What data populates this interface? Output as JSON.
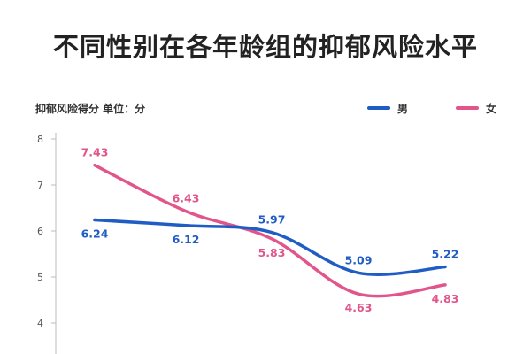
{
  "chart_data": {
    "type": "line",
    "title": "不同性别在各年龄组的抑郁风险水平",
    "ylabel": "抑郁风险得分 单位：分",
    "categories": [
      "",
      "",
      "",
      "",
      ""
    ],
    "ylim": [
      4,
      8
    ],
    "yticks": [
      4,
      5,
      6,
      7,
      8
    ],
    "legend_position": "top-right",
    "series": [
      {
        "name": "男",
        "color": "#1f5cc4",
        "values": [
          6.24,
          6.12,
          5.97,
          5.09,
          5.22
        ],
        "labels": [
          "6.24",
          "6.12",
          "5.97",
          "5.09",
          "5.22"
        ]
      },
      {
        "name": "女",
        "color": "#e2558b",
        "values": [
          7.43,
          6.43,
          5.83,
          4.63,
          4.83
        ],
        "labels": [
          "7.43",
          "6.43",
          "5.83",
          "4.63",
          "4.83"
        ]
      }
    ]
  }
}
